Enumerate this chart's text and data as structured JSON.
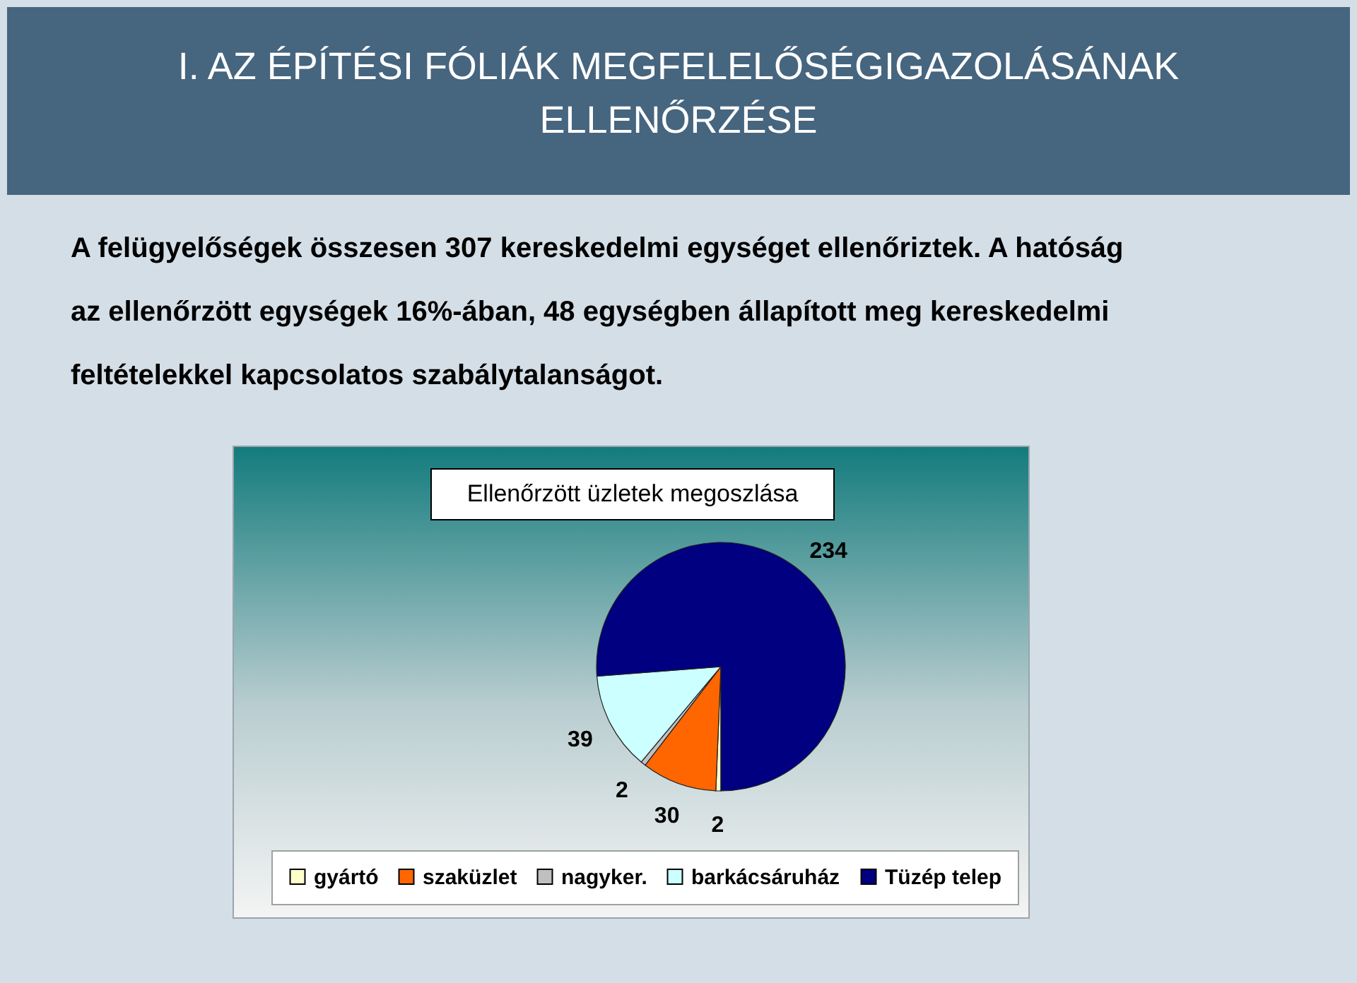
{
  "chart_data": {
    "type": "pie",
    "title": "Ellenőrzött üzletek megoszlása",
    "categories": [
      "gyártó",
      "szaküzlet",
      "nagyker.",
      "barkácsáruház",
      "Tüzép telep"
    ],
    "values": [
      2,
      30,
      2,
      39,
      234
    ],
    "colors": [
      "#ffffcc",
      "#ff6600",
      "#c0c0c0",
      "#ccffff",
      "#000080"
    ],
    "data_labels": true,
    "legend": "bottom",
    "annotations": [
      "I. AZ ÉPÍTÉSI FÓLIÁK MEGFELELŐSÉGIGAZOLÁSÁNAK ELLENŐRZÉSE",
      "A felügyelőségek összesen 307 kereskedelmi egységet ellenőriztek. A hatóság az ellenőrzött egységek 16%-ában, 48 egységben állapított meg kereskedelmi feltételekkel kapcsolatos szabálytalanságot."
    ]
  }
}
